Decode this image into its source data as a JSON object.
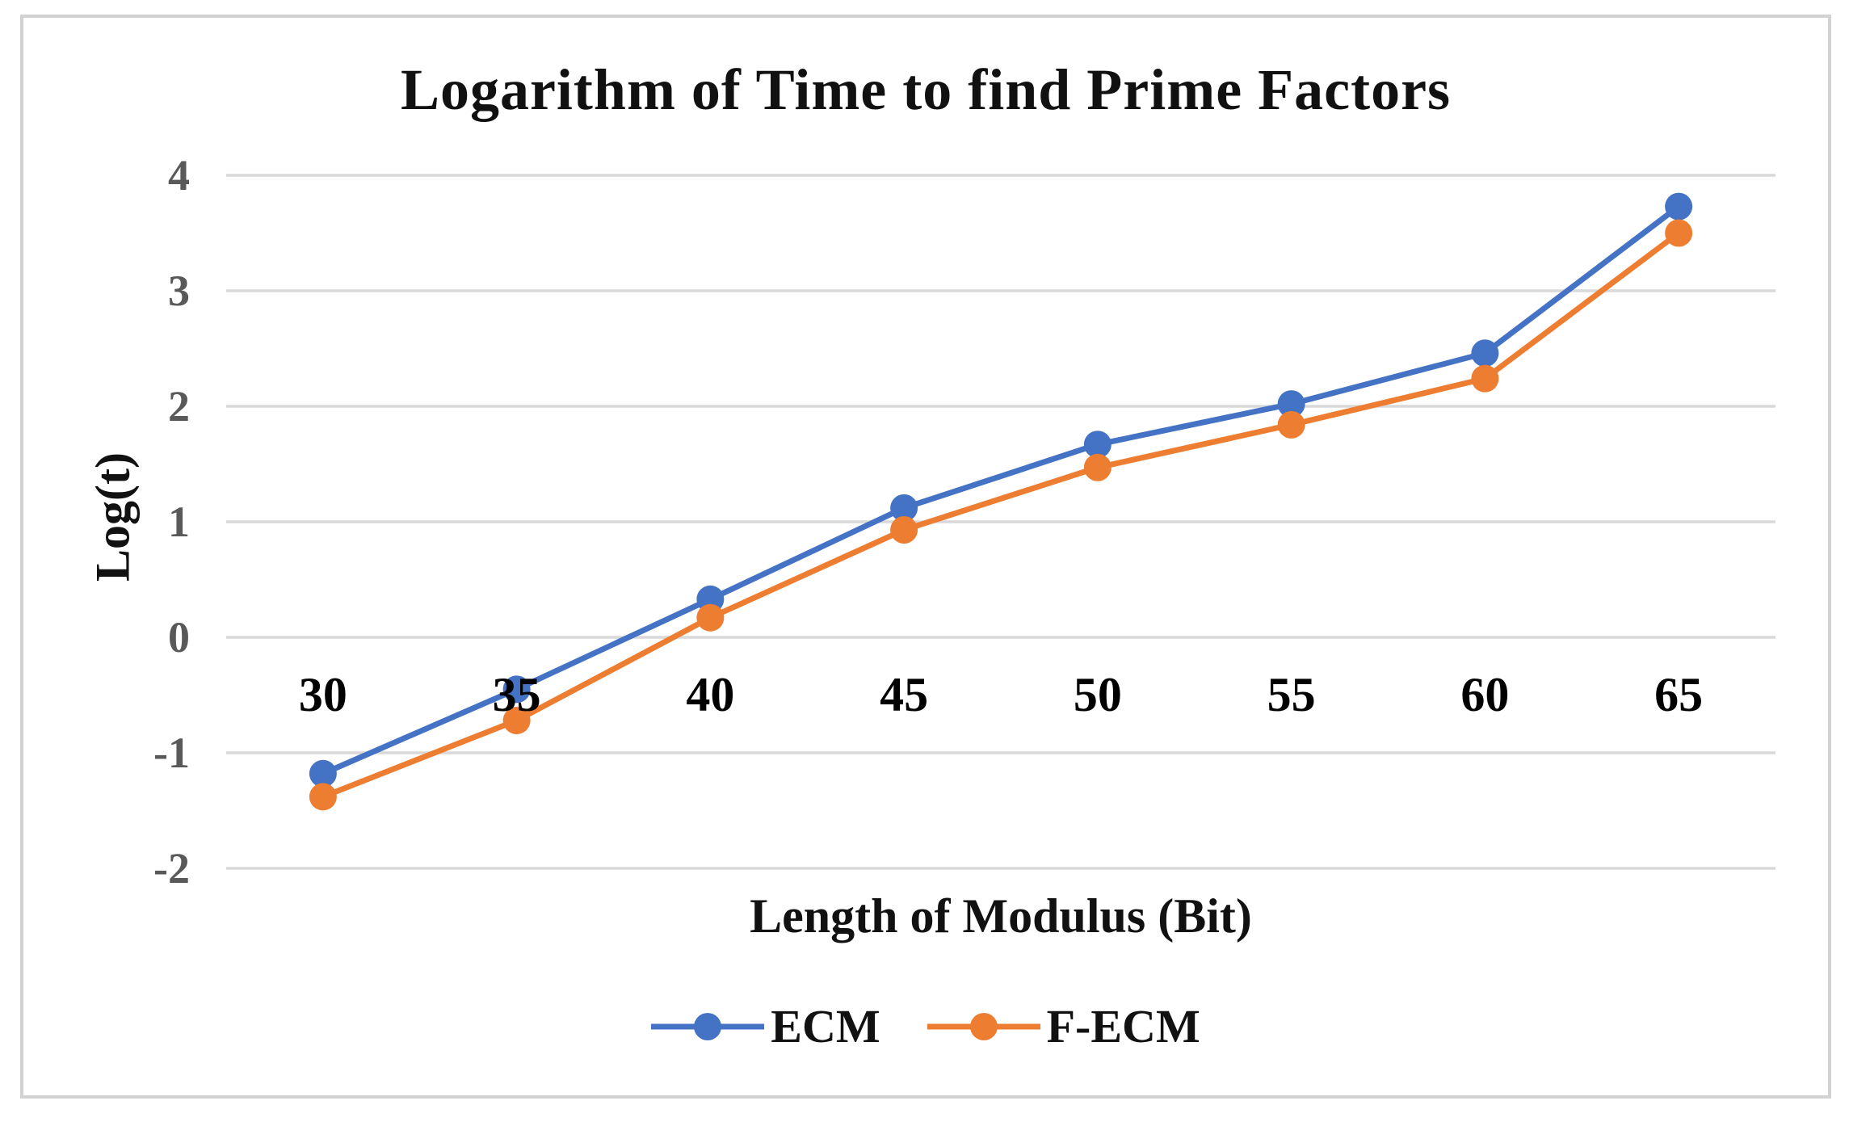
{
  "figure": {
    "background": "#ffffff",
    "border_color": "#d2d2d2"
  },
  "chart_data": {
    "type": "line",
    "title": "Logarithm of Time to find Prime Factors",
    "xlabel": "Length of Modulus (Bit)",
    "ylabel": "Log(t)",
    "categories": [
      "30",
      "35",
      "40",
      "45",
      "50",
      "55",
      "60",
      "65"
    ],
    "series": [
      {
        "name": "ECM",
        "color": "#4472C4",
        "values": [
          -1.18,
          -0.45,
          0.33,
          1.12,
          1.67,
          2.02,
          2.46,
          3.73
        ]
      },
      {
        "name": "F-ECM",
        "color": "#ED7D31",
        "values": [
          -1.38,
          -0.72,
          0.17,
          0.93,
          1.47,
          1.84,
          2.24,
          3.5
        ]
      }
    ],
    "ylim": [
      -2,
      4
    ],
    "yticks": [
      4,
      3,
      2,
      1,
      0,
      -1,
      -2
    ],
    "grid": "horizontal-only",
    "gridline_color": "#d9d9d9",
    "y_tick_label_color": "#595959",
    "x_tick_label_color": "#000000",
    "legend_position": "bottom-center",
    "marker": "circle",
    "x_labels_at_zero_line": true
  }
}
